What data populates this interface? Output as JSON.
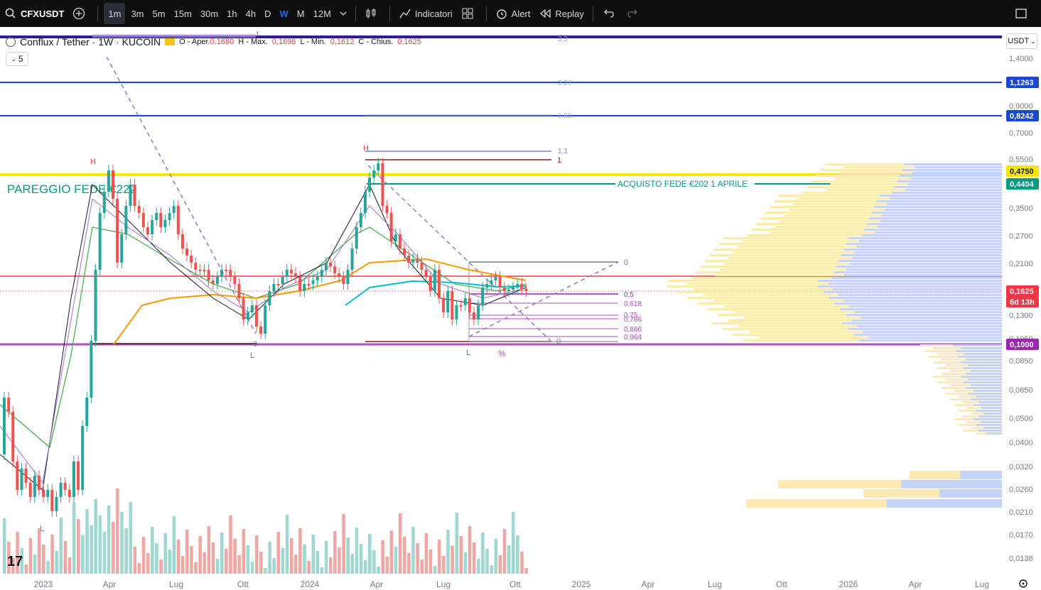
{
  "toolbar": {
    "symbol": "CFXUSDT",
    "timeframes": [
      "1m",
      "3m",
      "5m",
      "15m",
      "30m",
      "1h",
      "4h",
      "D",
      "W",
      "M",
      "12M"
    ],
    "active_timeframe": "1m",
    "indicators_label": "Indicatori",
    "alert_label": "Alert",
    "replay_label": "Replay"
  },
  "legend": {
    "title": "Conflux / Tether · 1W · KUCOIN",
    "o_label": "O - Aper.",
    "o_val": "0,1680",
    "h_label": "H - Max.",
    "h_val": "0,1698",
    "l_label": "L - Min.",
    "l_val": "0,1612",
    "c_label": "C - Chius.",
    "c_val": "0,1625",
    "collapse": "5"
  },
  "currency": "USDT",
  "price_axis": {
    "ticks": [
      "1,4000",
      "0,9000",
      "0,7000",
      "0,5500",
      "0,3500",
      "0,2700",
      "0,2100",
      "0,1300",
      "0,1050",
      "0,0850",
      "0,0650",
      "0,0500",
      "0,0400",
      "0,0320",
      "0,0260",
      "0,0210",
      "0,0170",
      "0,0138"
    ],
    "badges": [
      {
        "text": "1,1263",
        "color": "#1848cc"
      },
      {
        "text": "0,8242",
        "color": "#1848cc"
      },
      {
        "text": "0,4750",
        "color": "#f7e600"
      },
      {
        "text": "0,4404",
        "color": "#089981"
      },
      {
        "text": "0,1625",
        "color": "#f23645"
      },
      {
        "text": "6d 13h",
        "color": "#f23645"
      },
      {
        "text": "0,1000",
        "color": "#9c27b0"
      }
    ]
  },
  "time_axis": [
    "2023",
    "Apr",
    "Lug",
    "Ott",
    "2024",
    "Apr",
    "Lug",
    "Ott",
    "2025",
    "Apr",
    "Lug",
    "Ott",
    "2026",
    "Apr",
    "Lug"
  ],
  "annotations": {
    "pareggio": "PAREGGIO FEDE €222",
    "acquisto": "ACQUISTO FEDE €202 1 APRILE",
    "fib_ext": [
      "3,3",
      "2,27",
      "1,61",
      "1,1",
      "1"
    ],
    "fib_ret": [
      "0",
      "0,5",
      "0,618",
      "0,75",
      "0,786",
      "0,886",
      "0,964",
      "0",
      "1"
    ],
    "pivots": [
      "H",
      "H",
      "L",
      "L",
      "L"
    ],
    "percent_icon": "%",
    "top_label": "1"
  },
  "colors": {
    "up": "#26a69a",
    "down": "#ef5350",
    "blue_line": "#1848cc",
    "yellow_line": "#f7e600",
    "green_line": "#089981",
    "red_line": "#f23645",
    "purple_line": "#9c27b0"
  }
}
